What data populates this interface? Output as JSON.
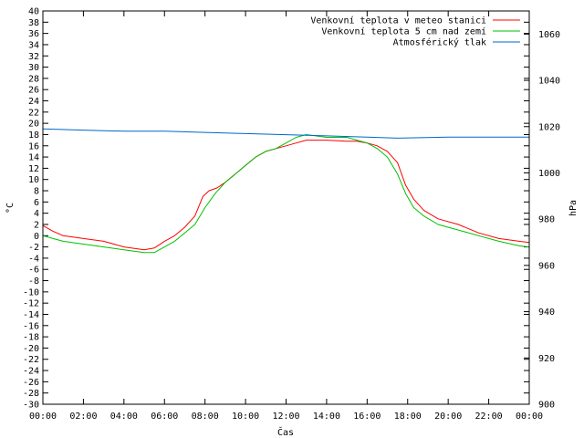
{
  "chart_data": {
    "type": "line",
    "xlabel": "Čas",
    "ylabel_left": "°C",
    "ylabel_right": "hPa",
    "x_ticks": [
      "00:00",
      "02:00",
      "04:00",
      "06:00",
      "08:00",
      "10:00",
      "12:00",
      "14:00",
      "16:00",
      "18:00",
      "20:00",
      "22:00",
      "00:00"
    ],
    "x_range_hours": [
      0,
      24
    ],
    "ylim_left": [
      -30,
      40
    ],
    "ytick_step_left": 2,
    "ylim_right": [
      900,
      1070
    ],
    "yticks_right": [
      900,
      920,
      940,
      960,
      980,
      1000,
      1020,
      1040,
      1060
    ],
    "grid": false,
    "legend_position": "top-right",
    "series": [
      {
        "name": "Venkovní teplota v meteo stanici",
        "color": "#ff0000",
        "axis": "left",
        "points": [
          [
            0,
            1.8
          ],
          [
            0.5,
            0.8
          ],
          [
            1,
            0
          ],
          [
            2,
            -0.5
          ],
          [
            3,
            -1
          ],
          [
            4,
            -2
          ],
          [
            5,
            -2.5
          ],
          [
            5.5,
            -2.2
          ],
          [
            6,
            -1
          ],
          [
            6.5,
            0
          ],
          [
            7,
            1.5
          ],
          [
            7.5,
            3.5
          ],
          [
            7.9,
            7
          ],
          [
            8.2,
            8
          ],
          [
            8.6,
            8.5
          ],
          [
            9,
            9.5
          ],
          [
            9.5,
            11
          ],
          [
            10,
            12.5
          ],
          [
            10.5,
            14
          ],
          [
            11,
            15
          ],
          [
            11.5,
            15.5
          ],
          [
            12,
            16
          ],
          [
            12.5,
            16.5
          ],
          [
            13,
            17
          ],
          [
            14,
            17
          ],
          [
            15,
            16.8
          ],
          [
            15.5,
            16.8
          ],
          [
            16,
            16.5
          ],
          [
            16.5,
            16
          ],
          [
            17,
            15
          ],
          [
            17.5,
            13
          ],
          [
            17.9,
            9
          ],
          [
            18.3,
            6.5
          ],
          [
            18.8,
            4.5
          ],
          [
            19.5,
            3
          ],
          [
            20.5,
            2
          ],
          [
            21.5,
            0.5
          ],
          [
            22.5,
            -0.5
          ],
          [
            23.5,
            -1
          ],
          [
            24,
            -1.2
          ]
        ]
      },
      {
        "name": "Venkovní teplota 5 cm nad zemí",
        "color": "#00c000",
        "axis": "left",
        "points": [
          [
            0,
            0
          ],
          [
            0.5,
            -0.5
          ],
          [
            1,
            -1
          ],
          [
            2,
            -1.5
          ],
          [
            3,
            -2
          ],
          [
            4,
            -2.5
          ],
          [
            5,
            -3
          ],
          [
            5.5,
            -3
          ],
          [
            6,
            -2
          ],
          [
            6.5,
            -1
          ],
          [
            7,
            0.5
          ],
          [
            7.5,
            2
          ],
          [
            8,
            5
          ],
          [
            8.5,
            7.5
          ],
          [
            9,
            9.5
          ],
          [
            9.5,
            11
          ],
          [
            10,
            12.5
          ],
          [
            10.5,
            14
          ],
          [
            11,
            15
          ],
          [
            11.5,
            15.5
          ],
          [
            12,
            16.5
          ],
          [
            12.5,
            17.5
          ],
          [
            13,
            18
          ],
          [
            14,
            17.5
          ],
          [
            15,
            17.5
          ],
          [
            15.5,
            17
          ],
          [
            16,
            16.5
          ],
          [
            16.5,
            15.5
          ],
          [
            17,
            14
          ],
          [
            17.5,
            11
          ],
          [
            17.9,
            7.5
          ],
          [
            18.3,
            5
          ],
          [
            18.8,
            3.5
          ],
          [
            19.5,
            2
          ],
          [
            20.5,
            1
          ],
          [
            21.5,
            0
          ],
          [
            22.5,
            -1
          ],
          [
            23.5,
            -1.8
          ],
          [
            24,
            -2
          ]
        ]
      },
      {
        "name": "Atmosférický tlak",
        "color": "#0066cc",
        "axis": "right",
        "points": [
          [
            0,
            1019
          ],
          [
            2,
            1018.5
          ],
          [
            4,
            1018
          ],
          [
            6,
            1018
          ],
          [
            8,
            1017.5
          ],
          [
            10,
            1017
          ],
          [
            12,
            1016.5
          ],
          [
            14,
            1016
          ],
          [
            16,
            1015.5
          ],
          [
            17.5,
            1015
          ],
          [
            20,
            1015.5
          ],
          [
            22,
            1015.5
          ],
          [
            24,
            1015.5
          ]
        ]
      }
    ]
  }
}
